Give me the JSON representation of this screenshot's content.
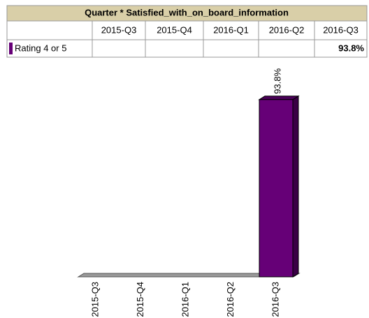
{
  "chart_data": {
    "type": "bar",
    "title": "Quarter * Satisfied_with_on_board_information",
    "categories": [
      "2015-Q3",
      "2015-Q4",
      "2016-Q1",
      "2016-Q2",
      "2016-Q3"
    ],
    "series": [
      {
        "name": "Rating 4 or 5",
        "color": "#660077",
        "values": [
          null,
          null,
          null,
          null,
          93.8
        ],
        "value_labels": [
          null,
          null,
          null,
          null,
          "93.8%"
        ]
      }
    ]
  }
}
